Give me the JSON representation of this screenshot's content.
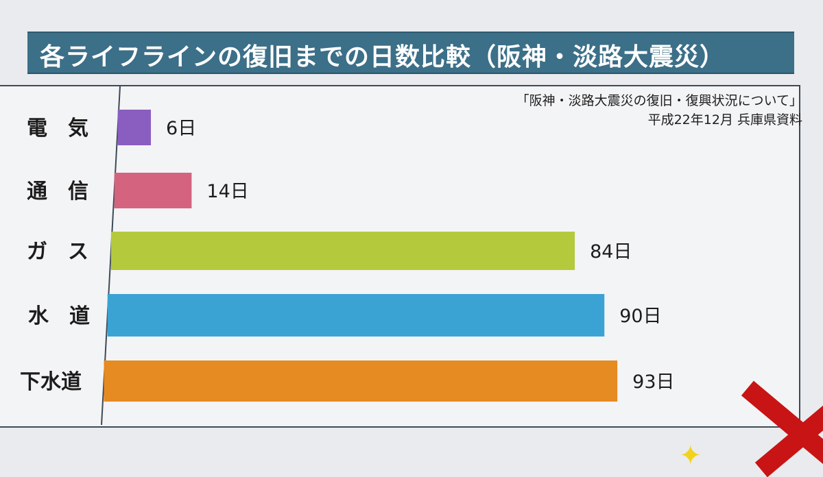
{
  "title": "各ライフラインの復旧までの日数比較（阪神・淡路大震災）",
  "source": {
    "line1": "「阪神・淡路大震災の復旧・復興状況について」",
    "line2": "平成22年12月 兵庫県資料"
  },
  "chart_data": {
    "type": "bar",
    "orientation": "horizontal",
    "categories": [
      "電　気",
      "通　信",
      "ガ　ス",
      "水　道",
      "下水道"
    ],
    "values": [
      6,
      14,
      84,
      90,
      93
    ],
    "value_labels": [
      "6日",
      "14日",
      "84日",
      "90日",
      "93日"
    ],
    "colors": [
      "#8a5ec0",
      "#d4637f",
      "#b5c93c",
      "#3aa3d4",
      "#e68a22"
    ],
    "grid": false
  }
}
